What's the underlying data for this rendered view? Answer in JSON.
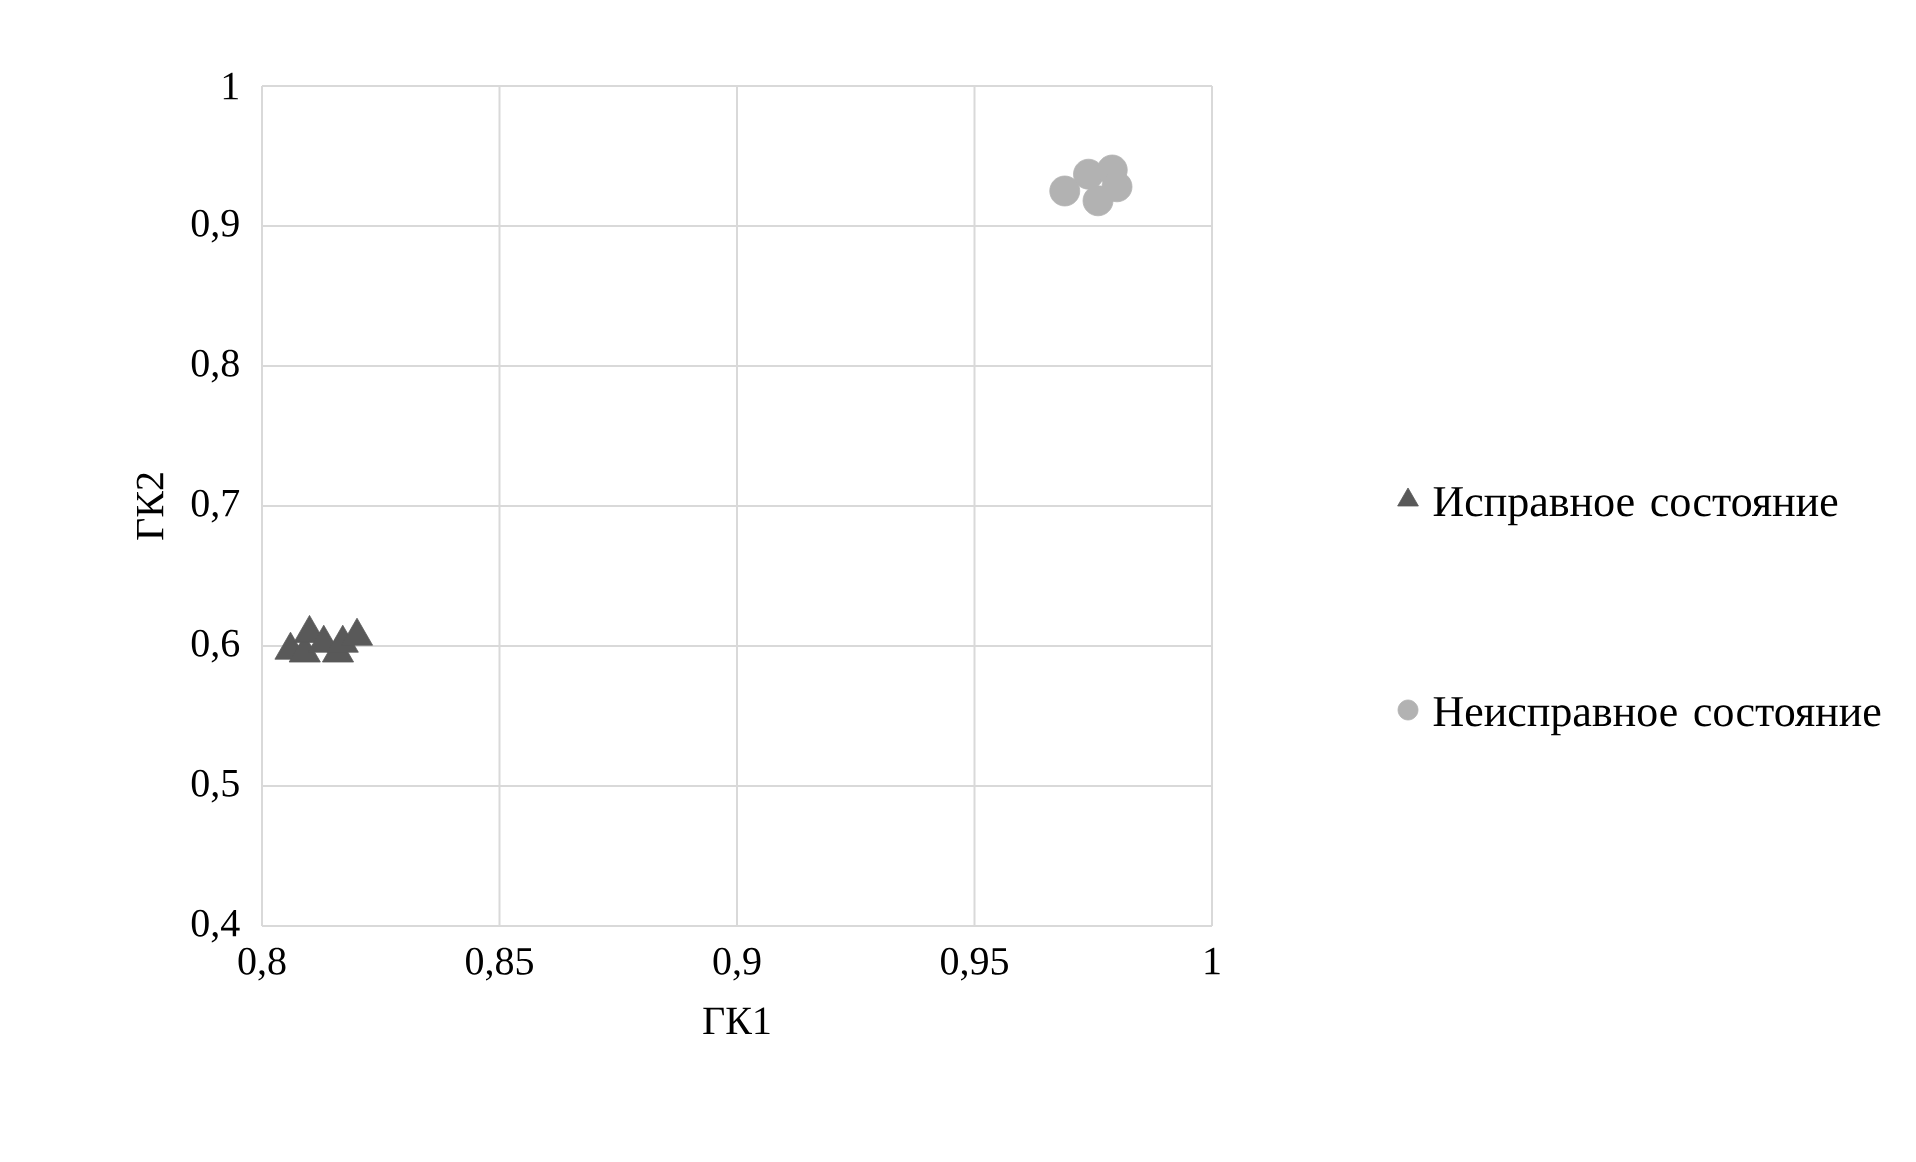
{
  "chart_data": {
    "type": "scatter",
    "xlabel": "ГК1",
    "ylabel": "ГК2",
    "xlim": [
      0.8,
      1
    ],
    "xticks": [
      {
        "value": 0.8,
        "label": "0,8"
      },
      {
        "value": 0.85,
        "label": "0,85"
      },
      {
        "value": 0.9,
        "label": "0,9"
      },
      {
        "value": 0.95,
        "label": "0,95"
      },
      {
        "value": 1,
        "label": "1"
      }
    ],
    "ylim": [
      0.4,
      1
    ],
    "yticks": [
      {
        "value": 0.4,
        "label": "0,4"
      },
      {
        "value": 0.5,
        "label": "0,5"
      },
      {
        "value": 0.6,
        "label": "0,6"
      },
      {
        "value": 0.7,
        "label": "0,7"
      },
      {
        "value": 0.8,
        "label": "0,8"
      },
      {
        "value": 0.9,
        "label": "0,9"
      },
      {
        "value": 1,
        "label": "1"
      }
    ],
    "grid": true,
    "legend": "right",
    "series": [
      {
        "name": "Исправное состояние",
        "color": "#595959",
        "marker": "triangle",
        "x": [
          0.806,
          0.809,
          0.81,
          0.813,
          0.816,
          0.817,
          0.82
        ],
        "values": [
          0.597,
          0.595,
          0.609,
          0.602,
          0.595,
          0.602,
          0.607
        ]
      },
      {
        "name": "Неисправное состояние",
        "color": "#b2b2b2",
        "marker": "circle",
        "x": [
          0.969,
          0.974,
          0.975,
          0.976,
          0.979,
          0.98
        ],
        "values": [
          0.925,
          0.937,
          null,
          0.918,
          0.94,
          0.928
        ]
      }
    ]
  }
}
